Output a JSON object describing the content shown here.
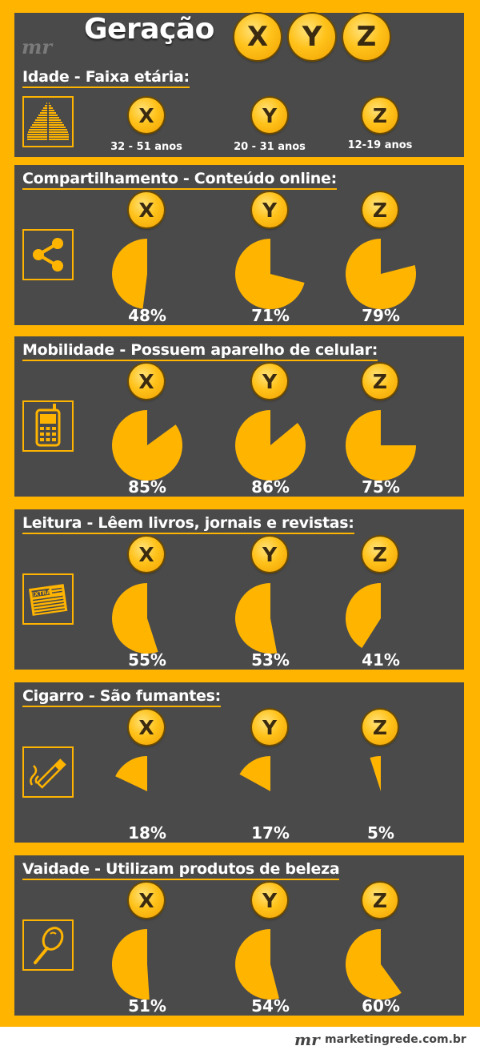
{
  "header": {
    "title": "Geração",
    "logo": "mr",
    "badges": [
      "X",
      "Y",
      "Z"
    ]
  },
  "age_section": {
    "title": "Idade - Faixa etária:",
    "icon": "population-pyramid-icon",
    "groups": [
      {
        "badge": "X",
        "range": "32 - 51 anos"
      },
      {
        "badge": "Y",
        "range": "20 - 31 anos"
      },
      {
        "badge": "Z",
        "range": "12-19 anos"
      }
    ]
  },
  "sections": [
    {
      "id": "sharing",
      "title": "Compartilhamento - Conteúdo online:",
      "icon": "share-icon",
      "groups": [
        {
          "badge": "X",
          "value": 48,
          "label": "48%"
        },
        {
          "badge": "Y",
          "value": 71,
          "label": "71%"
        },
        {
          "badge": "Z",
          "value": 79,
          "label": "79%"
        }
      ]
    },
    {
      "id": "mobility",
      "title": "Mobilidade - Possuem aparelho de celular:",
      "icon": "mobile-phone-icon",
      "groups": [
        {
          "badge": "X",
          "value": 85,
          "label": "85%"
        },
        {
          "badge": "Y",
          "value": 86,
          "label": "86%"
        },
        {
          "badge": "Z",
          "value": 75,
          "label": "75%"
        }
      ]
    },
    {
      "id": "reading",
      "title": "Leitura - Lêem livros, jornais e revistas:",
      "icon": "newspaper-icon",
      "icon_text": "EXTRA",
      "groups": [
        {
          "badge": "X",
          "value": 55,
          "label": "55%"
        },
        {
          "badge": "Y",
          "value": 53,
          "label": "53%"
        },
        {
          "badge": "Z",
          "value": 41,
          "label": "41%"
        }
      ]
    },
    {
      "id": "smoking",
      "title": "Cigarro - São fumantes:",
      "icon": "cigarette-icon",
      "groups": [
        {
          "badge": "X",
          "value": 18,
          "label": "18%"
        },
        {
          "badge": "Y",
          "value": 17,
          "label": "17%"
        },
        {
          "badge": "Z",
          "value": 5,
          "label": "5%"
        }
      ]
    },
    {
      "id": "vanity",
      "title": "Vaidade - Utilizam produtos de beleza",
      "icon": "hand-mirror-icon",
      "groups": [
        {
          "badge": "X",
          "value": 51,
          "label": "51%"
        },
        {
          "badge": "Y",
          "value": 54,
          "label": "54%"
        },
        {
          "badge": "Z",
          "value": 60,
          "label": "60%"
        }
      ]
    }
  ],
  "footer": {
    "logo": "mr",
    "url": "marketingrede.com.br"
  },
  "colors": {
    "accent": "#ffb400",
    "panel": "#4a4a4a",
    "text": "#ffffff"
  }
}
